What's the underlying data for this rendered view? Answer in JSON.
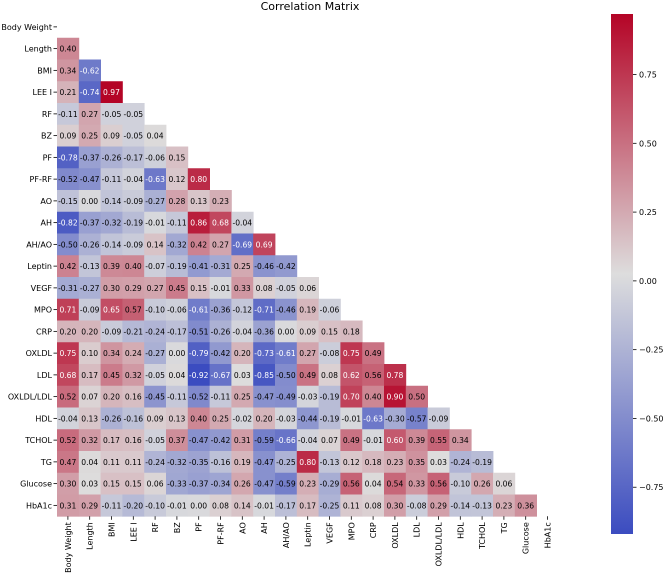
{
  "chart_data": {
    "type": "heatmap",
    "title": "Correlation Matrix",
    "variables": [
      "Body Weight",
      "Length",
      "BMI",
      "LEE I",
      "RF",
      "BZ",
      "PF",
      "PF-RF",
      "AO",
      "AH",
      "AH/AO",
      "Leptin",
      "VEGF",
      "MPO",
      "CRP",
      "OXLDL",
      "LDL",
      "OXLDL/LDL",
      "HDL",
      "TCHOL",
      "TG",
      "Glucose",
      "HbA1c"
    ],
    "lower_triangle": [
      [],
      [
        0.4
      ],
      [
        0.34,
        -0.62
      ],
      [
        0.21,
        -0.74,
        0.97
      ],
      [
        -0.11,
        0.27,
        -0.05,
        -0.05
      ],
      [
        0.09,
        0.25,
        0.09,
        -0.05,
        0.04
      ],
      [
        -0.78,
        -0.37,
        -0.26,
        -0.17,
        -0.06,
        0.15
      ],
      [
        -0.52,
        -0.47,
        -0.11,
        -0.04,
        -0.63,
        0.12,
        0.8
      ],
      [
        -0.15,
        0.0,
        -0.14,
        -0.09,
        -0.27,
        0.28,
        0.13,
        0.23
      ],
      [
        -0.82,
        -0.37,
        -0.32,
        -0.19,
        -0.01,
        -0.11,
        0.86,
        0.68,
        -0.04
      ],
      [
        -0.5,
        -0.26,
        -0.14,
        -0.09,
        0.14,
        -0.32,
        0.42,
        0.27,
        -0.69,
        0.69
      ],
      [
        0.42,
        -0.13,
        0.39,
        0.4,
        -0.07,
        -0.19,
        -0.41,
        -0.31,
        0.25,
        -0.46,
        -0.42
      ],
      [
        -0.31,
        -0.27,
        0.3,
        0.29,
        0.27,
        0.45,
        0.15,
        -0.01,
        0.33,
        0.08,
        -0.05,
        0.06
      ],
      [
        0.71,
        -0.09,
        0.65,
        0.57,
        -0.1,
        -0.06,
        -0.61,
        -0.36,
        -0.12,
        -0.71,
        -0.46,
        0.19,
        -0.06
      ],
      [
        0.2,
        0.2,
        -0.09,
        -0.21,
        -0.24,
        -0.17,
        -0.51,
        -0.26,
        -0.04,
        -0.36,
        0.0,
        0.09,
        0.15,
        0.18
      ],
      [
        0.75,
        0.1,
        0.34,
        0.24,
        -0.27,
        0.0,
        -0.79,
        -0.42,
        0.2,
        -0.73,
        -0.61,
        0.27,
        -0.08,
        0.75,
        0.49
      ],
      [
        0.68,
        0.17,
        0.45,
        0.32,
        -0.05,
        0.04,
        -0.92,
        -0.67,
        0.03,
        -0.85,
        -0.5,
        0.49,
        0.08,
        0.62,
        0.56,
        0.78
      ],
      [
        0.52,
        0.07,
        0.2,
        0.16,
        -0.45,
        -0.11,
        -0.52,
        -0.11,
        0.25,
        -0.47,
        -0.49,
        -0.03,
        -0.19,
        0.7,
        0.4,
        0.9,
        0.5
      ],
      [
        -0.04,
        0.13,
        -0.26,
        -0.16,
        0.09,
        0.13,
        0.4,
        0.25,
        -0.02,
        0.2,
        -0.03,
        -0.44,
        -0.19,
        -0.01,
        -0.63,
        -0.3,
        -0.57,
        -0.09
      ],
      [
        0.52,
        0.32,
        0.17,
        0.16,
        -0.05,
        0.37,
        -0.47,
        -0.42,
        0.31,
        -0.59,
        -0.66,
        -0.04,
        0.07,
        0.49,
        -0.01,
        0.6,
        0.39,
        0.55,
        0.34
      ],
      [
        0.47,
        0.04,
        0.11,
        0.11,
        -0.24,
        -0.32,
        -0.35,
        -0.16,
        0.19,
        -0.47,
        -0.25,
        0.8,
        -0.13,
        0.12,
        0.18,
        0.23,
        0.35,
        0.03,
        -0.24,
        -0.19
      ],
      [
        0.3,
        0.03,
        0.15,
        0.15,
        0.06,
        -0.33,
        -0.37,
        -0.34,
        0.26,
        -0.47,
        -0.59,
        0.23,
        -0.29,
        0.56,
        0.04,
        0.54,
        0.33,
        0.56,
        -0.1,
        0.26,
        0.06
      ],
      [
        0.31,
        0.29,
        -0.11,
        -0.2,
        -0.1,
        -0.01,
        0.0,
        0.08,
        0.14,
        -0.01,
        -0.17,
        0.17,
        -0.25,
        0.11,
        0.08,
        0.3,
        -0.08,
        0.29,
        -0.14,
        -0.13,
        0.23,
        0.36
      ]
    ],
    "colorbar": {
      "ticks": [
        0.75,
        0.5,
        0.25,
        0.0,
        -0.25,
        -0.5,
        -0.75
      ],
      "tick_labels": [
        "0.75",
        "0.50",
        "0.25",
        "0.00",
        "−0.25",
        "−0.50",
        "−0.75"
      ],
      "range": [
        -0.92,
        0.97
      ]
    },
    "colormap": "coolwarm",
    "colormap_stops": [
      "#3b4cc0",
      "#dddddd",
      "#b40426"
    ]
  }
}
